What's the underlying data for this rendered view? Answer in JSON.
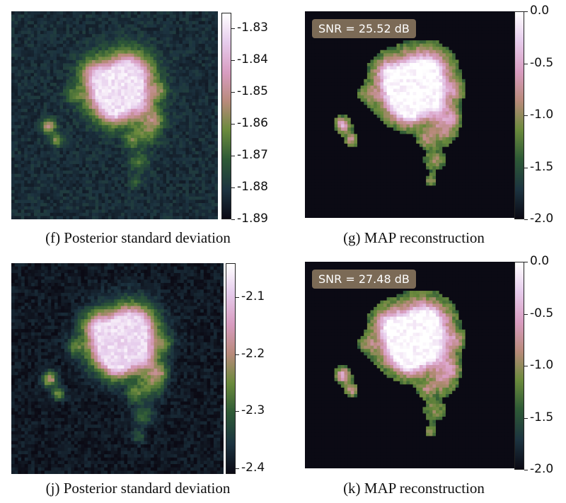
{
  "colormap": [
    "#0b0a14",
    "#1c3340",
    "#2e5a36",
    "#6a8a3c",
    "#b88a7a",
    "#d89cc0",
    "#e6ccec",
    "#ffffff"
  ],
  "panels": [
    {
      "id": "f",
      "kind": "std",
      "caption": "(f) Posterior standard deviation",
      "colorbar_ticks": [
        "-1.83",
        "-1.84",
        "-1.85",
        "-1.86",
        "-1.87",
        "-1.88",
        "-1.89"
      ],
      "colorbar_range": [
        -1.89,
        -1.825
      ]
    },
    {
      "id": "g",
      "kind": "map",
      "caption": "(g) MAP reconstruction",
      "snr": "SNR = 25.52 dB",
      "colorbar_ticks": [
        "0.0",
        "-0.5",
        "-1.0",
        "-1.5",
        "-2.0"
      ],
      "colorbar_range": [
        -2.0,
        0.0
      ]
    },
    {
      "id": "j",
      "kind": "std",
      "caption": "(j) Posterior standard deviation",
      "colorbar_ticks": [
        "-2.1",
        "-2.2",
        "-2.3",
        "-2.4"
      ],
      "colorbar_range": [
        -2.41,
        -2.04
      ]
    },
    {
      "id": "k",
      "kind": "map",
      "caption": "(k) MAP reconstruction",
      "snr": "SNR = 27.48 dB",
      "colorbar_ticks": [
        "0.0",
        "-0.5",
        "-1.0",
        "-1.5",
        "-2.0"
      ],
      "colorbar_range": [
        -2.0,
        0.0
      ]
    }
  ]
}
